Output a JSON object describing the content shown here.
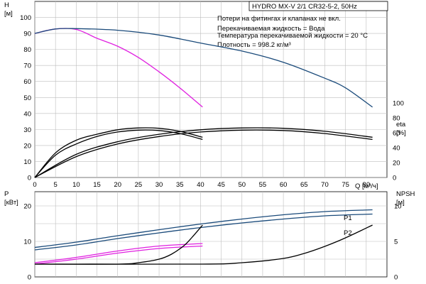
{
  "chart_data": [
    {
      "type": "line",
      "title": "HYDRO MX-V 2/1 CR32-5-2, 50Hz",
      "notes": [
        "Потери на фитингах и клапанах не вкл.",
        "Перекачиваемая жидкость = Вода",
        "Температура перекачиваемой жидкости = 20 °C",
        "Плотность = 998.2 кг/м³"
      ],
      "xlabel": "Q [м³/ч]",
      "xlim": [
        0,
        85
      ],
      "x_ticks": [
        "0",
        "5",
        "10",
        "15",
        "20",
        "25",
        "30",
        "35",
        "40",
        "45",
        "50",
        "55",
        "60",
        "65",
        "70",
        "75",
        "80"
      ],
      "y_left": {
        "label": "H",
        "unit": "[м]",
        "lim": [
          0,
          110
        ],
        "ticks": [
          "0",
          "10",
          "20",
          "30",
          "40",
          "50",
          "60",
          "70",
          "80",
          "90",
          "100"
        ]
      },
      "y_right": {
        "label": "eta",
        "unit": "[%]",
        "lim": [
          0,
          100
        ],
        "ticks": [
          "0",
          "20",
          "40",
          "60",
          "80",
          "100"
        ]
      },
      "series": [
        {
          "axis": "left",
          "color": "#e020e0",
          "x": [
            0,
            5,
            10,
            15,
            20,
            25,
            30,
            35,
            40.5
          ],
          "y": [
            90,
            92.8,
            92.5,
            87,
            82,
            75,
            66,
            56,
            44
          ]
        },
        {
          "axis": "left",
          "color": "#1a4a7a",
          "x": [
            0,
            5,
            10,
            20,
            30,
            40,
            50,
            60,
            70,
            75,
            81.5
          ],
          "y": [
            90,
            92.8,
            93,
            92,
            89,
            84,
            79,
            72,
            62,
            56,
            44
          ]
        },
        {
          "axis": "right",
          "color": "#000000",
          "x": [
            0,
            5,
            10,
            15,
            20,
            25,
            30,
            35,
            40.5
          ],
          "y": [
            0,
            30,
            45,
            55,
            61,
            63.5,
            63,
            59,
            51
          ]
        },
        {
          "axis": "right",
          "color": "#000000",
          "x": [
            0,
            5,
            10,
            15,
            20,
            25,
            30,
            35,
            40.5
          ],
          "y": [
            0,
            33,
            50,
            58,
            64,
            66.5,
            66,
            62,
            54
          ]
        },
        {
          "axis": "right",
          "color": "#000000",
          "x": [
            0,
            10,
            20,
            30,
            40,
            50,
            60,
            70,
            81.5
          ],
          "y": [
            0,
            28,
            45,
            55,
            61,
            63.5,
            63,
            59,
            51
          ]
        },
        {
          "axis": "right",
          "color": "#000000",
          "x": [
            0,
            10,
            20,
            30,
            40,
            50,
            60,
            70,
            81.5
          ],
          "y": [
            0,
            31,
            48,
            58,
            64,
            66.5,
            66,
            62,
            54
          ]
        }
      ]
    },
    {
      "type": "line",
      "xlim": [
        0,
        85
      ],
      "y_left": {
        "label": "P",
        "unit": "[кВт]",
        "lim": [
          0,
          24
        ],
        "ticks": [
          "0",
          "10",
          "20"
        ]
      },
      "y_right": {
        "label": "NPSH",
        "unit": "[м]",
        "lim": [
          0,
          12
        ],
        "ticks": [
          "0",
          "5",
          "10"
        ]
      },
      "series": [
        {
          "name": "P1",
          "axis": "left",
          "color": "#1a4a7a",
          "x": [
            0,
            10,
            20,
            30,
            40,
            50,
            60,
            70,
            81.5
          ],
          "y": [
            8.3,
            9.8,
            11.6,
            13.3,
            14.9,
            16.3,
            17.5,
            18.4,
            18.9
          ]
        },
        {
          "axis": "left",
          "color": "#1a4a7a",
          "x": [
            0,
            10,
            20,
            30,
            40,
            50,
            60,
            70,
            81.5
          ],
          "y": [
            7.6,
            9.0,
            10.8,
            12.4,
            13.9,
            15.2,
            16.3,
            17.2,
            17.7
          ]
        },
        {
          "axis": "left",
          "color": "#e020e0",
          "x": [
            0,
            10,
            20,
            30,
            40.5
          ],
          "y": [
            4.0,
            5.5,
            7.3,
            8.7,
            9.4
          ]
        },
        {
          "axis": "left",
          "color": "#e020e0",
          "x": [
            0,
            10,
            20,
            30,
            40.5
          ],
          "y": [
            3.6,
            5.0,
            6.7,
            8.0,
            8.7
          ]
        },
        {
          "name": "P2",
          "axis": "right",
          "color": "#000000",
          "x": [
            0,
            40,
            50,
            60,
            65,
            70,
            75,
            81.5
          ],
          "y": [
            1.8,
            1.8,
            2.0,
            2.6,
            3.3,
            4.3,
            5.5,
            7.3
          ]
        },
        {
          "axis": "right",
          "color": "#000000",
          "x": [
            0,
            20,
            25,
            30,
            33,
            36,
            38,
            40.5
          ],
          "y": [
            1.8,
            1.8,
            2.0,
            2.5,
            3.2,
            4.4,
            5.6,
            7.3
          ]
        }
      ]
    }
  ]
}
